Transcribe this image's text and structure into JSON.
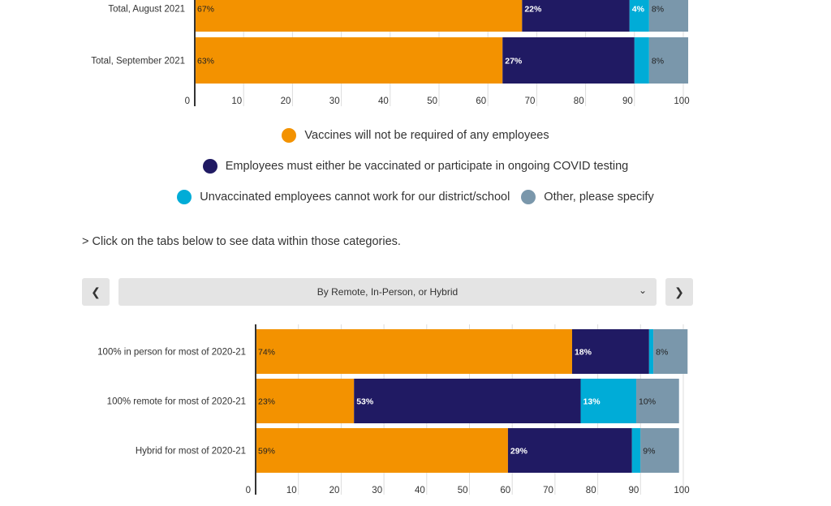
{
  "colors": {
    "not_required": "#f39200",
    "vax_or_test": "#201a63",
    "unvax_cannot_work": "#00acd7",
    "other": "#7a97ab"
  },
  "chart_data": [
    {
      "type": "bar",
      "orientation": "horizontal",
      "stacked": true,
      "categories": [
        "Total, August 2021",
        "Total, September 2021"
      ],
      "series": [
        {
          "name": "Vaccines will not be required of any employees",
          "values": [
            67,
            63
          ]
        },
        {
          "name": "Employees must either be vaccinated or participate in ongoing COVID testing",
          "values": [
            22,
            27
          ]
        },
        {
          "name": "Unvaccinated employees cannot work for our district/school",
          "values": [
            4,
            3
          ]
        },
        {
          "name": "Other, please specify",
          "values": [
            8,
            8
          ]
        }
      ],
      "data_labels": [
        [
          "67%",
          "22%",
          "4%",
          "8%"
        ],
        [
          "63%",
          "27%",
          "",
          "8%"
        ]
      ],
      "xlim": [
        0,
        100
      ],
      "xticks": [
        "0",
        "10",
        "20",
        "30",
        "40",
        "50",
        "60",
        "70",
        "80",
        "90",
        "100"
      ],
      "grid": true
    },
    {
      "type": "bar",
      "orientation": "horizontal",
      "stacked": true,
      "categories": [
        "100% in person for most of 2020-21",
        "100% remote for most of 2020-21",
        "Hybrid for most of 2020-21"
      ],
      "series": [
        {
          "name": "Vaccines will not be required of any employees",
          "values": [
            74,
            23,
            59
          ]
        },
        {
          "name": "Employees must either be vaccinated or participate in ongoing COVID testing",
          "values": [
            18,
            53,
            29
          ]
        },
        {
          "name": "Unvaccinated employees cannot work for our district/school",
          "values": [
            1,
            13,
            2
          ]
        },
        {
          "name": "Other, please specify",
          "values": [
            8,
            10,
            9
          ]
        }
      ],
      "data_labels": [
        [
          "74%",
          "18%",
          "",
          "8%"
        ],
        [
          "23%",
          "53%",
          "13%",
          "10%"
        ],
        [
          "59%",
          "29%",
          "",
          "9%"
        ]
      ],
      "xlim": [
        0,
        100
      ],
      "xticks": [
        "0",
        "10",
        "20",
        "30",
        "40",
        "50",
        "60",
        "70",
        "80",
        "90",
        "100"
      ],
      "grid": true
    }
  ],
  "legend": [
    [
      "Vaccines will not be required of any employees"
    ],
    [
      "Employees must either be vaccinated or participate in ongoing COVID testing"
    ],
    [
      "Unvaccinated employees cannot work for our district/school",
      "Other, please specify"
    ]
  ],
  "note": "> Click on the tabs below to see data within those categories.",
  "tabs": {
    "prev_icon": "chevron-left-icon",
    "next_icon": "chevron-right-icon",
    "selected": "By Remote, In-Person, or Hybrid",
    "dropdown_icon": "chevron-down-icon"
  }
}
